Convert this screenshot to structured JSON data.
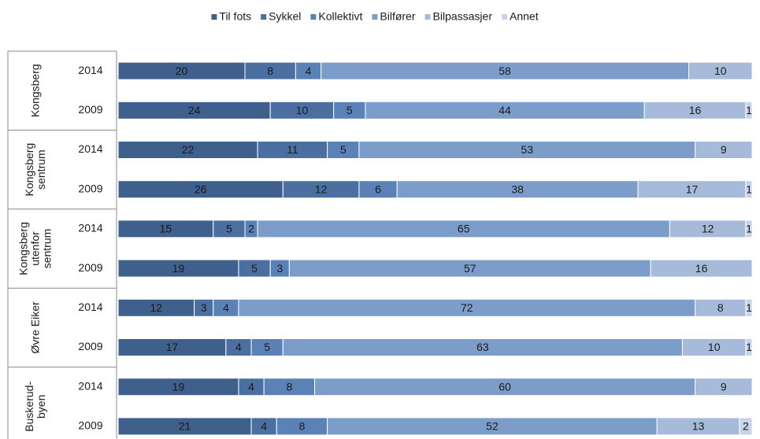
{
  "chart_data": {
    "type": "stacked-bar-horizontal",
    "legend_position": "top",
    "xlim": [
      0,
      100
    ],
    "groups": [
      {
        "lines": [
          "Kongsberg"
        ],
        "rows": [
          0,
          1
        ]
      },
      {
        "lines": [
          "Kongsberg",
          "sentrum"
        ],
        "rows": [
          2,
          3
        ]
      },
      {
        "lines": [
          "Kongsberg",
          "utenfor",
          "sentrum"
        ],
        "rows": [
          4,
          5
        ]
      },
      {
        "lines": [
          "Øvre Eiker"
        ],
        "rows": [
          6,
          7
        ]
      },
      {
        "lines": [
          "Buskerud-",
          "byen"
        ],
        "rows": [
          8,
          9
        ]
      }
    ],
    "categories": [
      "2014",
      "2009",
      "2014",
      "2009",
      "2014",
      "2009",
      "2014",
      "2009",
      "2014",
      "2009"
    ],
    "series": [
      {
        "name": "Til fots",
        "color": "#3f5f8c",
        "values": [
          20,
          24,
          22,
          26,
          15,
          19,
          12,
          17,
          19,
          21
        ]
      },
      {
        "name": "Sykkel",
        "color": "#4b6fa1",
        "values": [
          8,
          10,
          11,
          12,
          5,
          5,
          3,
          4,
          4,
          4
        ]
      },
      {
        "name": "Kollektivt",
        "color": "#5a82b7",
        "values": [
          4,
          5,
          5,
          6,
          2,
          3,
          4,
          5,
          8,
          8
        ]
      },
      {
        "name": "Bilfører",
        "color": "#7c9dc9",
        "values": [
          58,
          44,
          53,
          38,
          65,
          57,
          72,
          63,
          60,
          52
        ]
      },
      {
        "name": "Bilpassasjer",
        "color": "#a6bbda",
        "values": [
          10,
          16,
          9,
          17,
          12,
          16,
          8,
          10,
          9,
          13
        ]
      },
      {
        "name": "Annet",
        "color": "#c7d4e8",
        "values": [
          null,
          1,
          null,
          1,
          1,
          null,
          1,
          1,
          null,
          2
        ]
      }
    ]
  }
}
